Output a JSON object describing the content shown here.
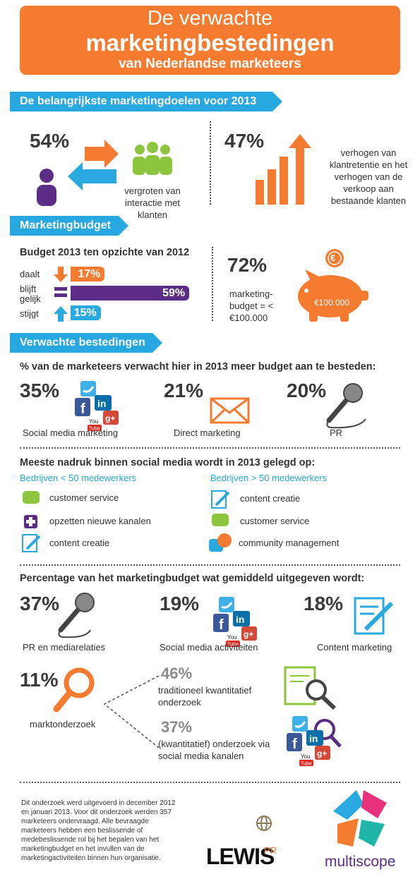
{
  "header": {
    "line1": "De verwachte",
    "line2": "marketingbestedingen",
    "line3": "van Nederlandse marketeers"
  },
  "goals": {
    "heading": "De belangrijkste marketingdoelen voor 2013",
    "items": [
      {
        "percent": "54%",
        "text": "vergroten van interactie met klanten"
      },
      {
        "percent": "47%",
        "text": "verhogen van klantretentie en het verhogen van de verkoop aan bestaande klanten"
      }
    ]
  },
  "budget": {
    "heading": "Marketingbudget",
    "subtitle": "Budget 2013 ten opzichte van 2012",
    "rows": [
      {
        "label": "daalt",
        "value": 17,
        "value_label": "17%"
      },
      {
        "label": "blijft gelijk",
        "value": 59,
        "value_label": "59%"
      },
      {
        "label": "stijgt",
        "value": 15,
        "value_label": "15%"
      }
    ],
    "stat": {
      "percent": "72%",
      "text": "marketing-budget = < €100.000",
      "coin": "€",
      "piggy": "€100.000"
    }
  },
  "spending": {
    "heading": "Verwachte bestedingen",
    "question": "% van de marketeers verwacht hier in 2013 meer budget aan te besteden:",
    "items": [
      {
        "percent": "35%",
        "label": "Social media marketing"
      },
      {
        "percent": "21%",
        "label": "Direct marketing"
      },
      {
        "percent": "20%",
        "label": "PR"
      }
    ]
  },
  "social": {
    "heading": "Meeste nadruk binnen social media wordt in 2013 gelegd op:",
    "groups": [
      {
        "title": "Bedrijven < 50 medewerkers",
        "items": [
          "customer service",
          "opzetten nieuwe kanalen",
          "content creatie"
        ]
      },
      {
        "title": "Bedrijven > 50 medewerkers",
        "items": [
          "content creatie",
          "customer service",
          "community management"
        ]
      }
    ]
  },
  "share": {
    "heading": "Percentage van het marketingbudget wat gemiddeld uitgegeven wordt:",
    "items": [
      {
        "percent": "37%",
        "label": "PR en mediarelaties"
      },
      {
        "percent": "19%",
        "label": "Social media activiteiten"
      },
      {
        "percent": "18%",
        "label": "Content marketing"
      }
    ],
    "research": {
      "percent": "11%",
      "label": "marktonderzoek",
      "split": [
        {
          "percent": "46%",
          "label": "traditioneel kwantitatief onderzoek"
        },
        {
          "percent": "37%",
          "label": "(kwantitatief) onderzoek via social media kanalen"
        }
      ]
    }
  },
  "social_icon_letters": {
    "facebook": "f",
    "linkedin": "in",
    "google": "g+",
    "you": "You",
    "tube": "Tube"
  },
  "footer": {
    "note": "Dit onderzoek werd uitgevoerd in december 2012 en januari 2013. Voor dit onderzoek werden 357 marketeers ondervraagd. Alle bevraagde marketeers hebben een beslissende of medebeslissende rol bij het bepalen van het marketingbudget en het invullen van de marketingactiviteiten binnen hun organisatie.",
    "lewis": "LEWIS",
    "pr": "PR",
    "multiscope": "multiscope"
  }
}
